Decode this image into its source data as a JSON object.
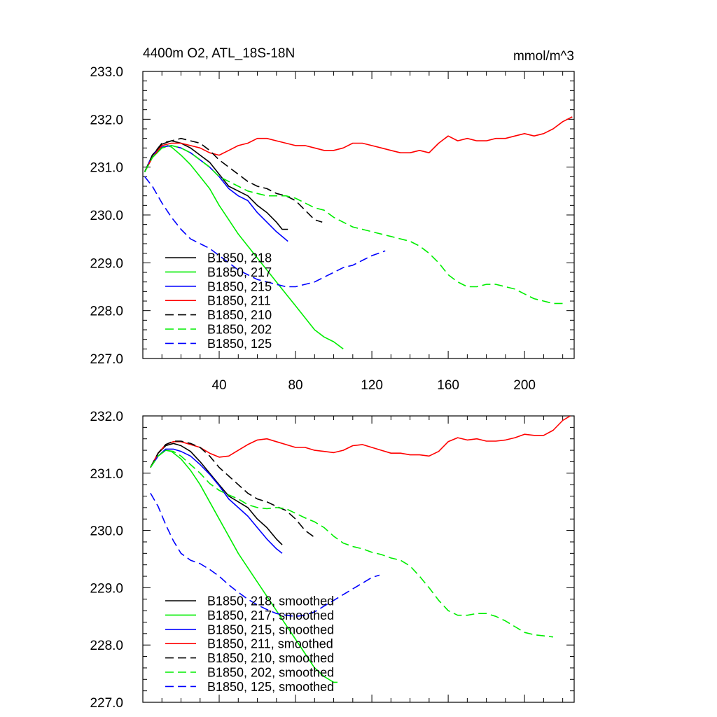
{
  "header": {
    "title": "4400m O2, ATL_18S-18N",
    "units": "mmol/m^3"
  },
  "colors": {
    "black": "#000000",
    "green": "#00ee00",
    "blue": "#0000ff",
    "red": "#ff0000"
  },
  "chart_data": [
    {
      "type": "line",
      "title": "4400m O2, ATL_18S-18N",
      "units_label": "mmol/m^3",
      "xlim": [
        0,
        226
      ],
      "ylim": [
        227.0,
        233.0
      ],
      "xticks": [
        40,
        80,
        120,
        160,
        200
      ],
      "yticks": [
        227.0,
        228.0,
        229.0,
        230.0,
        231.0,
        232.0,
        233.0
      ],
      "legend_position": "bottom-left",
      "grid": false,
      "series": [
        {
          "name": "B1850, 218",
          "color": "#000000",
          "dash": "solid",
          "x": [
            1,
            5,
            10,
            15,
            20,
            25,
            30,
            35,
            40,
            45,
            50,
            55,
            60,
            65,
            70,
            73,
            76
          ],
          "y": [
            230.9,
            231.25,
            231.48,
            231.55,
            231.5,
            231.4,
            231.25,
            231.1,
            230.85,
            230.6,
            230.5,
            230.4,
            230.2,
            230.05,
            229.85,
            229.7,
            229.7
          ]
        },
        {
          "name": "B1850, 217",
          "color": "#00ee00",
          "dash": "solid",
          "x": [
            1,
            5,
            10,
            13,
            15,
            20,
            25,
            30,
            35,
            40,
            45,
            50,
            55,
            60,
            65,
            70,
            75,
            80,
            85,
            90,
            95,
            100,
            105
          ],
          "y": [
            230.9,
            231.2,
            231.4,
            231.45,
            231.42,
            231.25,
            231.05,
            230.8,
            230.55,
            230.2,
            229.9,
            229.6,
            229.35,
            229.1,
            228.85,
            228.6,
            228.35,
            228.1,
            227.85,
            227.6,
            227.45,
            227.35,
            227.2
          ]
        },
        {
          "name": "B1850, 215",
          "color": "#0000ff",
          "dash": "solid",
          "x": [
            1,
            5,
            10,
            15,
            20,
            25,
            30,
            35,
            40,
            45,
            50,
            55,
            60,
            65,
            70,
            76
          ],
          "y": [
            230.9,
            231.25,
            231.42,
            231.45,
            231.4,
            231.3,
            231.15,
            231.0,
            230.8,
            230.55,
            230.4,
            230.3,
            230.05,
            229.85,
            229.65,
            229.45
          ]
        },
        {
          "name": "B1850, 211",
          "color": "#ff0000",
          "dash": "solid",
          "x": [
            1,
            5,
            10,
            15,
            20,
            25,
            30,
            35,
            40,
            45,
            50,
            55,
            60,
            65,
            70,
            75,
            80,
            85,
            90,
            95,
            100,
            105,
            110,
            115,
            120,
            125,
            130,
            135,
            140,
            145,
            150,
            155,
            160,
            165,
            170,
            175,
            180,
            185,
            190,
            195,
            200,
            205,
            210,
            215,
            220,
            225
          ],
          "y": [
            230.9,
            231.2,
            231.45,
            231.5,
            231.5,
            231.45,
            231.4,
            231.3,
            231.25,
            231.35,
            231.45,
            231.5,
            231.6,
            231.6,
            231.55,
            231.5,
            231.45,
            231.45,
            231.4,
            231.35,
            231.35,
            231.4,
            231.5,
            231.5,
            231.45,
            231.4,
            231.35,
            231.3,
            231.3,
            231.35,
            231.3,
            231.5,
            231.65,
            231.55,
            231.6,
            231.55,
            231.55,
            231.6,
            231.6,
            231.65,
            231.7,
            231.65,
            231.7,
            231.8,
            231.95,
            232.05
          ]
        },
        {
          "name": "B1850, 210",
          "color": "#000000",
          "dash": "dashed",
          "x": [
            1,
            5,
            10,
            15,
            20,
            25,
            30,
            35,
            40,
            45,
            50,
            55,
            60,
            65,
            70,
            75,
            80,
            85,
            90,
            94
          ],
          "y": [
            230.9,
            231.25,
            231.5,
            231.55,
            231.6,
            231.55,
            231.5,
            231.35,
            231.15,
            231.0,
            230.85,
            230.7,
            230.6,
            230.55,
            230.45,
            230.4,
            230.3,
            230.1,
            229.9,
            229.85
          ]
        },
        {
          "name": "B1850, 202",
          "color": "#00ee00",
          "dash": "dashed",
          "x": [
            1,
            5,
            10,
            15,
            20,
            25,
            30,
            35,
            40,
            45,
            50,
            55,
            60,
            65,
            70,
            75,
            80,
            85,
            90,
            95,
            100,
            105,
            110,
            115,
            120,
            125,
            130,
            135,
            140,
            145,
            150,
            155,
            160,
            165,
            170,
            175,
            180,
            185,
            190,
            195,
            200,
            205,
            210,
            215,
            220
          ],
          "y": [
            230.9,
            231.2,
            231.4,
            231.45,
            231.4,
            231.3,
            231.15,
            231.0,
            230.8,
            230.7,
            230.6,
            230.5,
            230.45,
            230.4,
            230.4,
            230.4,
            230.35,
            230.25,
            230.15,
            230.1,
            229.95,
            229.85,
            229.75,
            229.7,
            229.65,
            229.6,
            229.55,
            229.5,
            229.45,
            229.35,
            229.2,
            229.0,
            228.75,
            228.6,
            228.5,
            228.5,
            228.55,
            228.55,
            228.5,
            228.45,
            228.35,
            228.25,
            228.2,
            228.15,
            228.15
          ]
        },
        {
          "name": "B1850, 125",
          "color": "#0000ff",
          "dash": "dashed",
          "x": [
            1,
            5,
            10,
            15,
            20,
            25,
            30,
            35,
            40,
            45,
            50,
            55,
            60,
            65,
            70,
            75,
            80,
            85,
            90,
            95,
            100,
            105,
            110,
            115,
            120,
            127
          ],
          "y": [
            230.8,
            230.6,
            230.25,
            229.95,
            229.7,
            229.5,
            229.4,
            229.3,
            229.15,
            229.0,
            228.85,
            228.75,
            228.65,
            228.6,
            228.55,
            228.5,
            228.5,
            228.55,
            228.6,
            228.7,
            228.8,
            228.9,
            228.95,
            229.05,
            229.15,
            229.25
          ]
        }
      ]
    },
    {
      "type": "line",
      "xlim": [
        0,
        226
      ],
      "ylim": [
        227.0,
        232.0
      ],
      "xticks": [
        40,
        80,
        120,
        160,
        200
      ],
      "yticks": [
        227.0,
        228.0,
        229.0,
        230.0,
        231.0,
        232.0
      ],
      "legend_position": "bottom-left",
      "grid": false,
      "series": [
        {
          "name": "B1850, 218, smoothed",
          "color": "#000000",
          "dash": "solid",
          "x": [
            4,
            8,
            12,
            16,
            20,
            25,
            30,
            35,
            40,
            45,
            50,
            55,
            60,
            65,
            70,
            73
          ],
          "y": [
            231.1,
            231.35,
            231.48,
            231.52,
            231.48,
            231.38,
            231.2,
            231.0,
            230.8,
            230.6,
            230.5,
            230.4,
            230.2,
            230.05,
            229.85,
            229.75
          ]
        },
        {
          "name": "B1850, 217, smoothed",
          "color": "#00ee00",
          "dash": "solid",
          "x": [
            4,
            8,
            12,
            15,
            20,
            25,
            30,
            35,
            40,
            45,
            50,
            55,
            60,
            65,
            70,
            75,
            80,
            85,
            90,
            95,
            100,
            102
          ],
          "y": [
            231.1,
            231.3,
            231.4,
            231.38,
            231.25,
            231.05,
            230.8,
            230.5,
            230.2,
            229.9,
            229.6,
            229.35,
            229.1,
            228.85,
            228.6,
            228.35,
            228.1,
            227.85,
            227.6,
            227.45,
            227.35,
            227.35
          ]
        },
        {
          "name": "B1850, 215, smoothed",
          "color": "#0000ff",
          "dash": "solid",
          "x": [
            4,
            8,
            12,
            16,
            20,
            25,
            30,
            35,
            40,
            45,
            50,
            55,
            60,
            65,
            70,
            73
          ],
          "y": [
            231.1,
            231.3,
            231.42,
            231.42,
            231.38,
            231.3,
            231.15,
            230.98,
            230.78,
            230.55,
            230.4,
            230.25,
            230.05,
            229.85,
            229.68,
            229.6
          ]
        },
        {
          "name": "B1850, 211, smoothed",
          "color": "#ff0000",
          "dash": "solid",
          "x": [
            4,
            8,
            12,
            16,
            20,
            25,
            30,
            35,
            40,
            45,
            50,
            55,
            60,
            65,
            70,
            75,
            80,
            85,
            90,
            95,
            100,
            105,
            110,
            115,
            120,
            125,
            130,
            135,
            140,
            145,
            150,
            155,
            160,
            165,
            170,
            175,
            180,
            185,
            190,
            195,
            200,
            205,
            210,
            215,
            220,
            224
          ],
          "y": [
            231.1,
            231.35,
            231.5,
            231.55,
            231.55,
            231.5,
            231.45,
            231.35,
            231.28,
            231.3,
            231.4,
            231.5,
            231.58,
            231.6,
            231.55,
            231.5,
            231.45,
            231.45,
            231.4,
            231.38,
            231.36,
            231.4,
            231.48,
            231.5,
            231.45,
            231.4,
            231.35,
            231.35,
            231.32,
            231.32,
            231.3,
            231.38,
            231.55,
            231.62,
            231.58,
            231.6,
            231.56,
            231.56,
            231.58,
            231.62,
            231.68,
            231.66,
            231.66,
            231.75,
            231.92,
            232.0
          ]
        },
        {
          "name": "B1850, 210, smoothed",
          "color": "#000000",
          "dash": "dashed",
          "x": [
            4,
            8,
            12,
            16,
            20,
            25,
            30,
            35,
            40,
            45,
            50,
            55,
            60,
            65,
            70,
            75,
            80,
            85,
            90
          ],
          "y": [
            231.1,
            231.35,
            231.5,
            231.56,
            231.56,
            231.52,
            231.45,
            231.3,
            231.1,
            230.95,
            230.8,
            230.65,
            230.55,
            230.5,
            230.42,
            230.35,
            230.2,
            230.0,
            229.88
          ]
        },
        {
          "name": "B1850, 202, smoothed",
          "color": "#00ee00",
          "dash": "dashed",
          "x": [
            4,
            8,
            12,
            16,
            20,
            25,
            30,
            35,
            40,
            45,
            50,
            55,
            60,
            65,
            70,
            75,
            80,
            85,
            90,
            95,
            100,
            105,
            110,
            115,
            120,
            125,
            130,
            135,
            140,
            145,
            150,
            155,
            160,
            165,
            170,
            175,
            180,
            185,
            190,
            195,
            200,
            205,
            210,
            215
          ],
          "y": [
            231.1,
            231.3,
            231.4,
            231.38,
            231.3,
            231.15,
            231.0,
            230.82,
            230.7,
            230.62,
            230.55,
            230.45,
            230.4,
            230.38,
            230.4,
            230.38,
            230.3,
            230.22,
            230.15,
            230.05,
            229.9,
            229.78,
            229.72,
            229.68,
            229.62,
            229.58,
            229.52,
            229.48,
            229.38,
            229.2,
            229.0,
            228.78,
            228.6,
            228.52,
            228.52,
            228.55,
            228.55,
            228.5,
            228.42,
            228.32,
            228.22,
            228.18,
            228.16,
            228.14
          ]
        },
        {
          "name": "B1850, 125, smoothed",
          "color": "#0000ff",
          "dash": "dashed",
          "x": [
            4,
            8,
            12,
            16,
            20,
            25,
            30,
            35,
            40,
            45,
            50,
            55,
            60,
            65,
            70,
            75,
            80,
            85,
            90,
            95,
            100,
            105,
            110,
            115,
            120,
            124
          ],
          "y": [
            230.65,
            230.42,
            230.1,
            229.82,
            229.6,
            229.48,
            229.42,
            229.32,
            229.2,
            229.05,
            228.92,
            228.8,
            228.7,
            228.62,
            228.55,
            228.52,
            228.5,
            228.52,
            228.58,
            228.68,
            228.78,
            228.88,
            228.98,
            229.08,
            229.18,
            229.22
          ]
        }
      ]
    }
  ]
}
